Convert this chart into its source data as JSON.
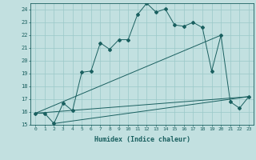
{
  "title": "",
  "xlabel": "Humidex (Indice chaleur)",
  "bg_color": "#c2e0e0",
  "grid_color": "#9ac8c8",
  "line_color": "#1a6060",
  "xlim": [
    -0.5,
    23.5
  ],
  "ylim": [
    15,
    24.5
  ],
  "xticks": [
    0,
    1,
    2,
    3,
    4,
    5,
    6,
    7,
    8,
    9,
    10,
    11,
    12,
    13,
    14,
    15,
    16,
    17,
    18,
    19,
    20,
    21,
    22,
    23
  ],
  "yticks": [
    15,
    16,
    17,
    18,
    19,
    20,
    21,
    22,
    23,
    24
  ],
  "series_main_x": [
    0,
    1,
    2,
    3,
    4,
    5,
    6,
    7,
    8,
    9,
    10,
    11,
    12,
    13,
    14,
    15,
    16,
    17,
    18,
    19,
    20,
    21,
    22,
    23
  ],
  "series_main_y": [
    15.9,
    15.9,
    15.1,
    16.7,
    16.1,
    19.1,
    19.2,
    21.4,
    20.9,
    21.65,
    21.65,
    23.6,
    24.5,
    23.8,
    24.05,
    22.8,
    22.7,
    23.0,
    22.6,
    19.2,
    22.0,
    16.8,
    16.3,
    17.2
  ],
  "line1_x": [
    0,
    20
  ],
  "line1_y": [
    15.9,
    22.0
  ],
  "line2_x": [
    0,
    23
  ],
  "line2_y": [
    15.9,
    17.2
  ],
  "line3_x": [
    2,
    23
  ],
  "line3_y": [
    15.1,
    17.2
  ]
}
